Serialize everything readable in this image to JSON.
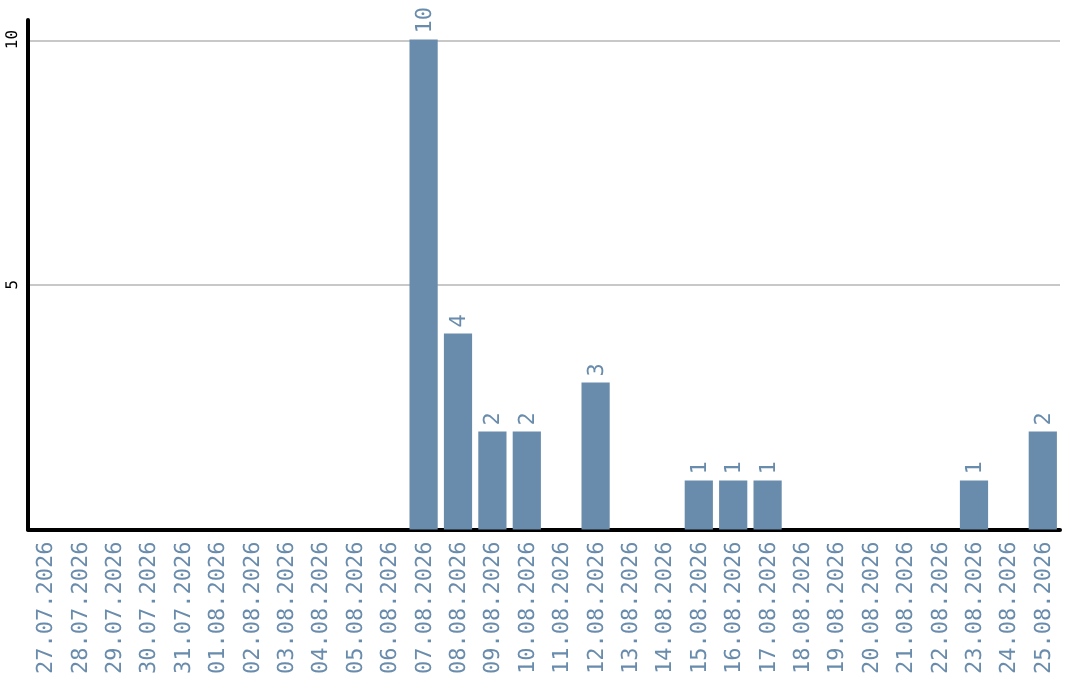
{
  "chart_data": {
    "type": "bar",
    "categories": [
      "27.07.2026",
      "28.07.2026",
      "29.07.2026",
      "30.07.2026",
      "31.07.2026",
      "01.08.2026",
      "02.08.2026",
      "03.08.2026",
      "04.08.2026",
      "05.08.2026",
      "06.08.2026",
      "07.08.2026",
      "08.08.2026",
      "09.08.2026",
      "10.08.2026",
      "11.08.2026",
      "12.08.2026",
      "13.08.2026",
      "14.08.2026",
      "15.08.2026",
      "16.08.2026",
      "17.08.2026",
      "18.08.2026",
      "19.08.2026",
      "20.08.2026",
      "21.08.2026",
      "22.08.2026",
      "23.08.2026",
      "24.08.2026",
      "25.08.2026"
    ],
    "values": [
      0,
      0,
      0,
      0,
      0,
      0,
      0,
      0,
      0,
      0,
      0,
      10,
      4,
      2,
      2,
      0,
      3,
      0,
      0,
      1,
      1,
      1,
      0,
      0,
      0,
      0,
      0,
      1,
      0,
      2
    ],
    "value_labels": [
      null,
      null,
      null,
      null,
      null,
      null,
      null,
      null,
      null,
      null,
      null,
      "10",
      "4",
      "2",
      "2",
      null,
      "3",
      null,
      null,
      "1",
      "1",
      "1",
      null,
      null,
      null,
      null,
      null,
      "1",
      null,
      "2"
    ],
    "color": "#6a8cac",
    "ylim": [
      0,
      10.4
    ],
    "yticks": [
      {
        "value": 0,
        "label": null
      },
      5,
      10
    ],
    "grid": "y"
  }
}
